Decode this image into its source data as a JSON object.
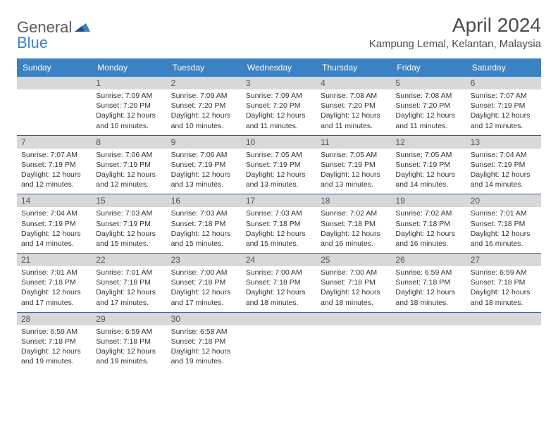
{
  "brand": {
    "part1": "General",
    "part2": "Blue"
  },
  "title": "April 2024",
  "location": "Kampung Lemal, Kelantan, Malaysia",
  "colors": {
    "header_bg": "#3b82c4",
    "strip_bg": "#d8d8d8",
    "rule": "#2f5a8a"
  },
  "days_of_week": [
    "Sunday",
    "Monday",
    "Tuesday",
    "Wednesday",
    "Thursday",
    "Friday",
    "Saturday"
  ],
  "weeks": [
    [
      {
        "date": "",
        "sunrise": "",
        "sunset": "",
        "daylight": ""
      },
      {
        "date": "1",
        "sunrise": "Sunrise: 7:09 AM",
        "sunset": "Sunset: 7:20 PM",
        "daylight": "Daylight: 12 hours and 10 minutes."
      },
      {
        "date": "2",
        "sunrise": "Sunrise: 7:09 AM",
        "sunset": "Sunset: 7:20 PM",
        "daylight": "Daylight: 12 hours and 10 minutes."
      },
      {
        "date": "3",
        "sunrise": "Sunrise: 7:09 AM",
        "sunset": "Sunset: 7:20 PM",
        "daylight": "Daylight: 12 hours and 11 minutes."
      },
      {
        "date": "4",
        "sunrise": "Sunrise: 7:08 AM",
        "sunset": "Sunset: 7:20 PM",
        "daylight": "Daylight: 12 hours and 11 minutes."
      },
      {
        "date": "5",
        "sunrise": "Sunrise: 7:08 AM",
        "sunset": "Sunset: 7:20 PM",
        "daylight": "Daylight: 12 hours and 11 minutes."
      },
      {
        "date": "6",
        "sunrise": "Sunrise: 7:07 AM",
        "sunset": "Sunset: 7:19 PM",
        "daylight": "Daylight: 12 hours and 12 minutes."
      }
    ],
    [
      {
        "date": "7",
        "sunrise": "Sunrise: 7:07 AM",
        "sunset": "Sunset: 7:19 PM",
        "daylight": "Daylight: 12 hours and 12 minutes."
      },
      {
        "date": "8",
        "sunrise": "Sunrise: 7:06 AM",
        "sunset": "Sunset: 7:19 PM",
        "daylight": "Daylight: 12 hours and 12 minutes."
      },
      {
        "date": "9",
        "sunrise": "Sunrise: 7:06 AM",
        "sunset": "Sunset: 7:19 PM",
        "daylight": "Daylight: 12 hours and 13 minutes."
      },
      {
        "date": "10",
        "sunrise": "Sunrise: 7:05 AM",
        "sunset": "Sunset: 7:19 PM",
        "daylight": "Daylight: 12 hours and 13 minutes."
      },
      {
        "date": "11",
        "sunrise": "Sunrise: 7:05 AM",
        "sunset": "Sunset: 7:19 PM",
        "daylight": "Daylight: 12 hours and 13 minutes."
      },
      {
        "date": "12",
        "sunrise": "Sunrise: 7:05 AM",
        "sunset": "Sunset: 7:19 PM",
        "daylight": "Daylight: 12 hours and 14 minutes."
      },
      {
        "date": "13",
        "sunrise": "Sunrise: 7:04 AM",
        "sunset": "Sunset: 7:19 PM",
        "daylight": "Daylight: 12 hours and 14 minutes."
      }
    ],
    [
      {
        "date": "14",
        "sunrise": "Sunrise: 7:04 AM",
        "sunset": "Sunset: 7:19 PM",
        "daylight": "Daylight: 12 hours and 14 minutes."
      },
      {
        "date": "15",
        "sunrise": "Sunrise: 7:03 AM",
        "sunset": "Sunset: 7:19 PM",
        "daylight": "Daylight: 12 hours and 15 minutes."
      },
      {
        "date": "16",
        "sunrise": "Sunrise: 7:03 AM",
        "sunset": "Sunset: 7:18 PM",
        "daylight": "Daylight: 12 hours and 15 minutes."
      },
      {
        "date": "17",
        "sunrise": "Sunrise: 7:03 AM",
        "sunset": "Sunset: 7:18 PM",
        "daylight": "Daylight: 12 hours and 15 minutes."
      },
      {
        "date": "18",
        "sunrise": "Sunrise: 7:02 AM",
        "sunset": "Sunset: 7:18 PM",
        "daylight": "Daylight: 12 hours and 16 minutes."
      },
      {
        "date": "19",
        "sunrise": "Sunrise: 7:02 AM",
        "sunset": "Sunset: 7:18 PM",
        "daylight": "Daylight: 12 hours and 16 minutes."
      },
      {
        "date": "20",
        "sunrise": "Sunrise: 7:01 AM",
        "sunset": "Sunset: 7:18 PM",
        "daylight": "Daylight: 12 hours and 16 minutes."
      }
    ],
    [
      {
        "date": "21",
        "sunrise": "Sunrise: 7:01 AM",
        "sunset": "Sunset: 7:18 PM",
        "daylight": "Daylight: 12 hours and 17 minutes."
      },
      {
        "date": "22",
        "sunrise": "Sunrise: 7:01 AM",
        "sunset": "Sunset: 7:18 PM",
        "daylight": "Daylight: 12 hours and 17 minutes."
      },
      {
        "date": "23",
        "sunrise": "Sunrise: 7:00 AM",
        "sunset": "Sunset: 7:18 PM",
        "daylight": "Daylight: 12 hours and 17 minutes."
      },
      {
        "date": "24",
        "sunrise": "Sunrise: 7:00 AM",
        "sunset": "Sunset: 7:18 PM",
        "daylight": "Daylight: 12 hours and 18 minutes."
      },
      {
        "date": "25",
        "sunrise": "Sunrise: 7:00 AM",
        "sunset": "Sunset: 7:18 PM",
        "daylight": "Daylight: 12 hours and 18 minutes."
      },
      {
        "date": "26",
        "sunrise": "Sunrise: 6:59 AM",
        "sunset": "Sunset: 7:18 PM",
        "daylight": "Daylight: 12 hours and 18 minutes."
      },
      {
        "date": "27",
        "sunrise": "Sunrise: 6:59 AM",
        "sunset": "Sunset: 7:18 PM",
        "daylight": "Daylight: 12 hours and 18 minutes."
      }
    ],
    [
      {
        "date": "28",
        "sunrise": "Sunrise: 6:59 AM",
        "sunset": "Sunset: 7:18 PM",
        "daylight": "Daylight: 12 hours and 19 minutes."
      },
      {
        "date": "29",
        "sunrise": "Sunrise: 6:59 AM",
        "sunset": "Sunset: 7:18 PM",
        "daylight": "Daylight: 12 hours and 19 minutes."
      },
      {
        "date": "30",
        "sunrise": "Sunrise: 6:58 AM",
        "sunset": "Sunset: 7:18 PM",
        "daylight": "Daylight: 12 hours and 19 minutes."
      },
      {
        "date": "",
        "sunrise": "",
        "sunset": "",
        "daylight": ""
      },
      {
        "date": "",
        "sunrise": "",
        "sunset": "",
        "daylight": ""
      },
      {
        "date": "",
        "sunrise": "",
        "sunset": "",
        "daylight": ""
      },
      {
        "date": "",
        "sunrise": "",
        "sunset": "",
        "daylight": ""
      }
    ]
  ]
}
